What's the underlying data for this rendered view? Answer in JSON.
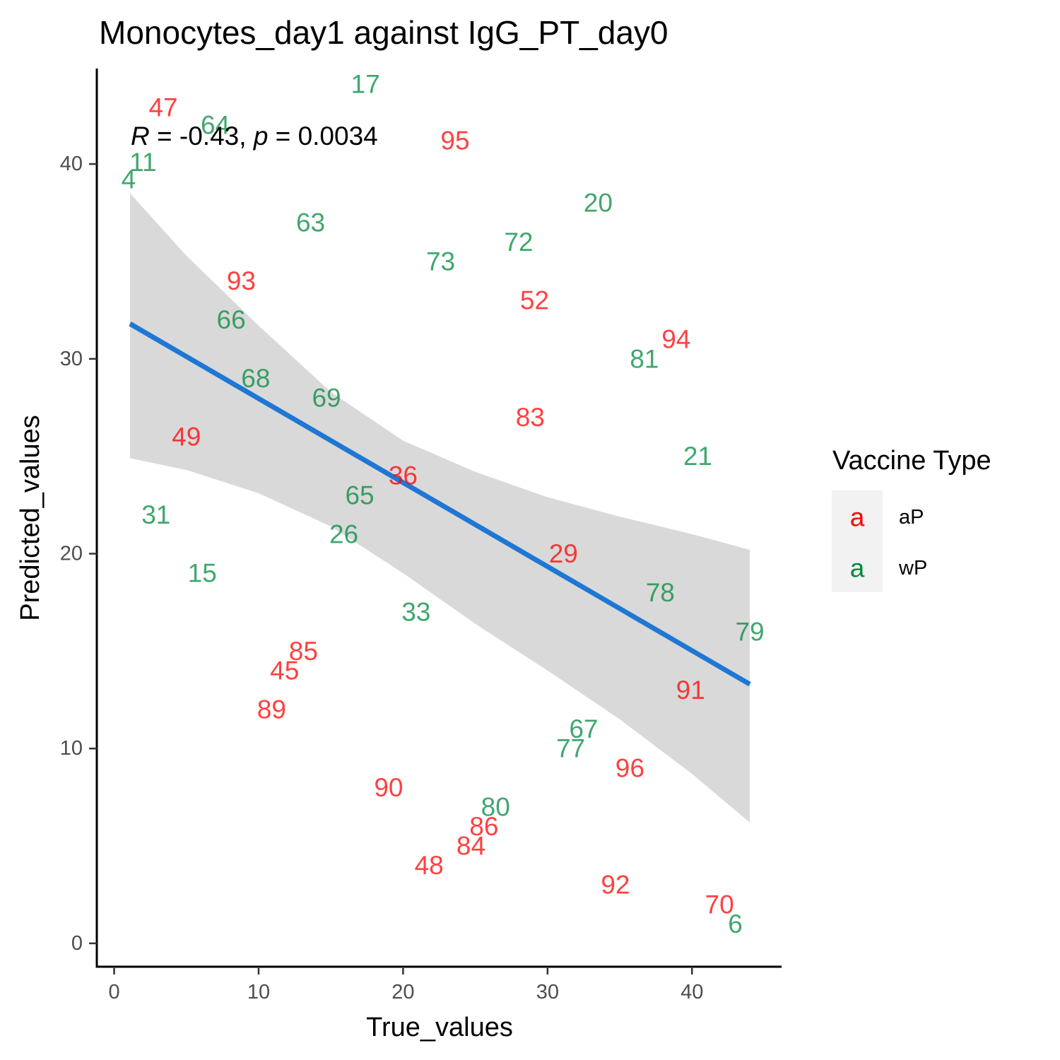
{
  "chart_data": {
    "type": "scatter",
    "title": "Monocytes_day1 against IgG_PT_day0",
    "xlabel": "True_values",
    "ylabel": "Predicted_values",
    "xlim": [
      -1.2,
      46.2
    ],
    "ylim": [
      -1.2,
      44.9
    ],
    "x_ticks": [
      0,
      10,
      20,
      30,
      40
    ],
    "y_ticks": [
      0,
      10,
      20,
      30,
      40
    ],
    "stat_annotation": {
      "R": "-0.43",
      "p": "0.0034"
    },
    "legend": {
      "title": "Vaccine Type",
      "placement": "right",
      "key_glyph": "a",
      "entries": [
        {
          "label": "aP",
          "color": "#ff0000"
        },
        {
          "label": "wP",
          "color": "#008a3c"
        }
      ]
    },
    "regression": {
      "x": [
        1.1,
        44
      ],
      "y": [
        31.8,
        13.3
      ],
      "color": "#1f77d4"
    },
    "confidence_band": {
      "x": [
        1.1,
        5,
        10,
        15,
        20,
        25,
        30,
        35,
        40,
        44
      ],
      "upper": [
        38.5,
        35.3,
        31.7,
        28.3,
        25.8,
        24.2,
        22.9,
        21.9,
        21.0,
        20.2
      ],
      "lower": [
        24.9,
        24.3,
        23.1,
        21.4,
        19.0,
        16.4,
        14.0,
        11.5,
        8.7,
        6.2
      ],
      "color": "#d9d9d9"
    },
    "points": [
      {
        "label": "47",
        "x": 3.4,
        "y": 42.9,
        "group": "aP"
      },
      {
        "label": "17",
        "x": 17.4,
        "y": 44.1,
        "group": "wP"
      },
      {
        "label": "64",
        "x": 7.0,
        "y": 42.0,
        "group": "wP"
      },
      {
        "label": "95",
        "x": 23.6,
        "y": 41.2,
        "group": "aP"
      },
      {
        "label": "11",
        "x": 2.0,
        "y": 40.1,
        "group": "wP"
      },
      {
        "label": "4",
        "x": 1.0,
        "y": 39.2,
        "group": "wP"
      },
      {
        "label": "20",
        "x": 33.5,
        "y": 38.0,
        "group": "wP"
      },
      {
        "label": "63",
        "x": 13.6,
        "y": 37.0,
        "group": "wP"
      },
      {
        "label": "72",
        "x": 28.0,
        "y": 36.0,
        "group": "wP"
      },
      {
        "label": "73",
        "x": 22.6,
        "y": 35.0,
        "group": "wP"
      },
      {
        "label": "93",
        "x": 8.8,
        "y": 34.0,
        "group": "aP"
      },
      {
        "label": "52",
        "x": 29.1,
        "y": 33.0,
        "group": "aP"
      },
      {
        "label": "66",
        "x": 8.1,
        "y": 32.0,
        "group": "wP"
      },
      {
        "label": "94",
        "x": 38.9,
        "y": 31.0,
        "group": "aP"
      },
      {
        "label": "81",
        "x": 36.7,
        "y": 30.0,
        "group": "wP"
      },
      {
        "label": "68",
        "x": 9.8,
        "y": 29.0,
        "group": "wP"
      },
      {
        "label": "69",
        "x": 14.7,
        "y": 28.0,
        "group": "wP"
      },
      {
        "label": "83",
        "x": 28.8,
        "y": 27.0,
        "group": "aP"
      },
      {
        "label": "49",
        "x": 5.0,
        "y": 26.0,
        "group": "aP"
      },
      {
        "label": "21",
        "x": 40.4,
        "y": 25.0,
        "group": "wP"
      },
      {
        "label": "36",
        "x": 20.0,
        "y": 24.0,
        "group": "aP"
      },
      {
        "label": "65",
        "x": 17.0,
        "y": 23.0,
        "group": "wP"
      },
      {
        "label": "31",
        "x": 2.9,
        "y": 22.0,
        "group": "wP"
      },
      {
        "label": "26",
        "x": 15.9,
        "y": 21.0,
        "group": "wP"
      },
      {
        "label": "29",
        "x": 31.1,
        "y": 20.0,
        "group": "aP"
      },
      {
        "label": "15",
        "x": 6.1,
        "y": 19.0,
        "group": "wP"
      },
      {
        "label": "78",
        "x": 37.8,
        "y": 18.0,
        "group": "wP"
      },
      {
        "label": "33",
        "x": 20.9,
        "y": 17.0,
        "group": "wP"
      },
      {
        "label": "79",
        "x": 44.0,
        "y": 16.0,
        "group": "wP"
      },
      {
        "label": "85",
        "x": 13.1,
        "y": 15.0,
        "group": "aP"
      },
      {
        "label": "45",
        "x": 11.8,
        "y": 14.0,
        "group": "aP"
      },
      {
        "label": "91",
        "x": 39.9,
        "y": 13.0,
        "group": "aP"
      },
      {
        "label": "89",
        "x": 10.9,
        "y": 12.0,
        "group": "aP"
      },
      {
        "label": "67",
        "x": 32.5,
        "y": 11.0,
        "group": "wP"
      },
      {
        "label": "77",
        "x": 31.6,
        "y": 10.0,
        "group": "wP"
      },
      {
        "label": "96",
        "x": 35.7,
        "y": 9.0,
        "group": "aP"
      },
      {
        "label": "90",
        "x": 19.0,
        "y": 8.0,
        "group": "aP"
      },
      {
        "label": "80",
        "x": 26.4,
        "y": 7.0,
        "group": "wP"
      },
      {
        "label": "86",
        "x": 25.6,
        "y": 6.0,
        "group": "aP"
      },
      {
        "label": "84",
        "x": 24.7,
        "y": 5.0,
        "group": "aP"
      },
      {
        "label": "48",
        "x": 21.8,
        "y": 4.0,
        "group": "aP"
      },
      {
        "label": "92",
        "x": 34.7,
        "y": 3.0,
        "group": "aP"
      },
      {
        "label": "70",
        "x": 41.9,
        "y": 2.0,
        "group": "aP"
      },
      {
        "label": "6",
        "x": 43.0,
        "y": 1.0,
        "group": "wP"
      }
    ]
  }
}
